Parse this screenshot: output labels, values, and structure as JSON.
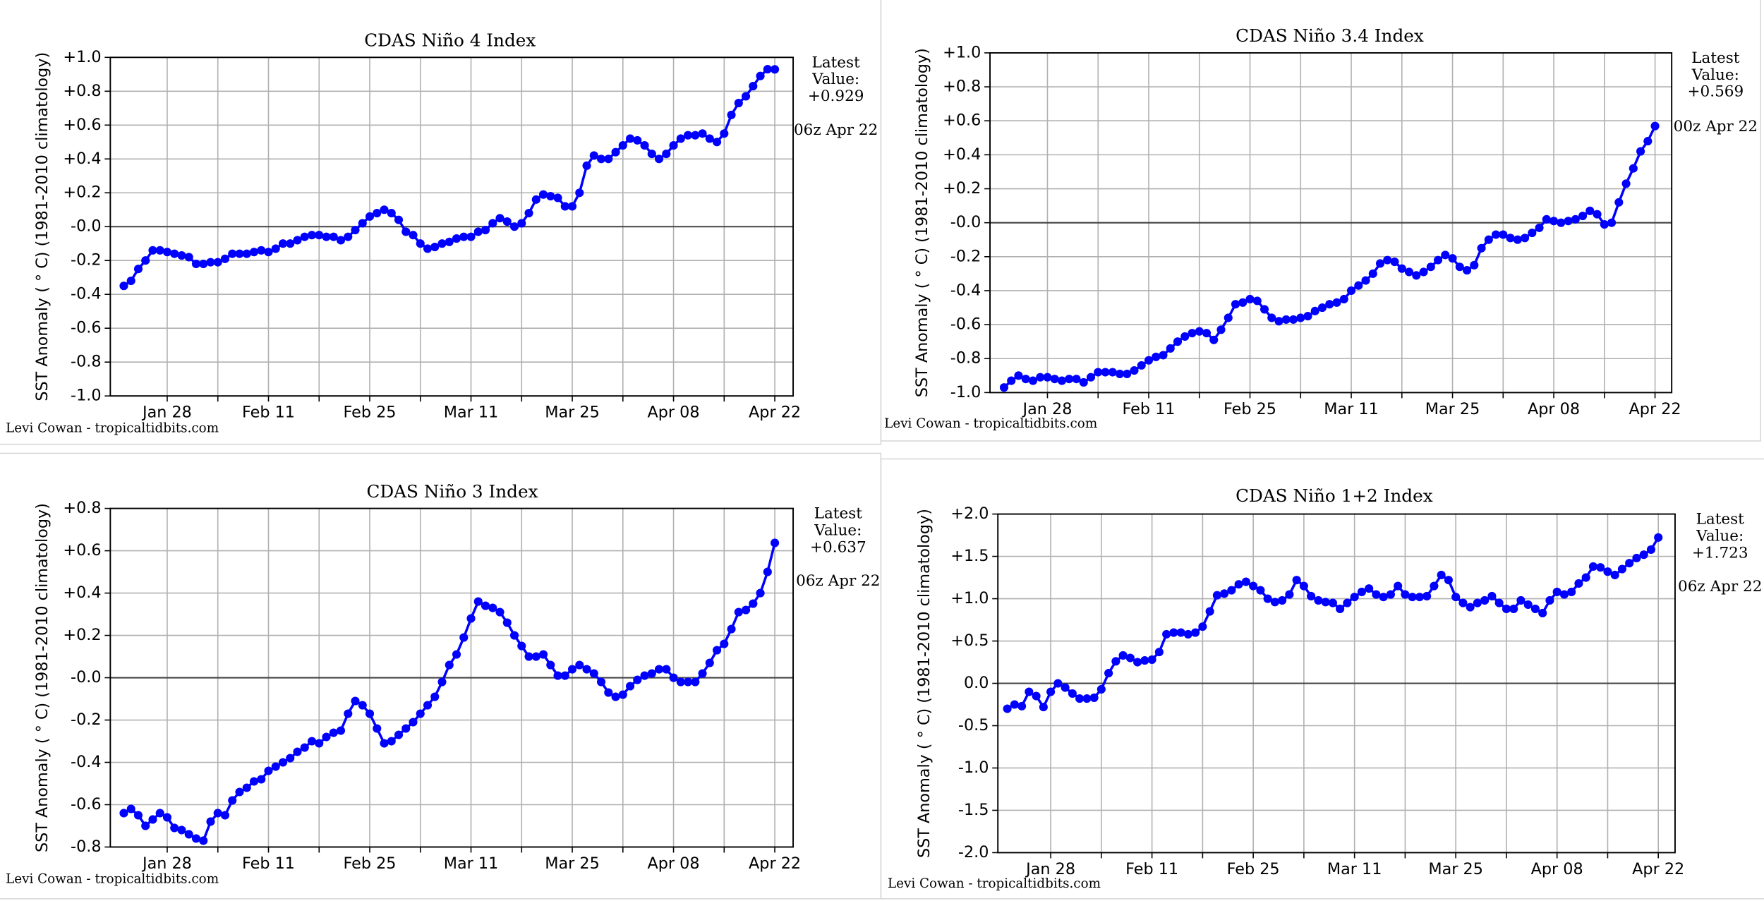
{
  "chart_data": [
    {
      "type": "line",
      "title": "CDAS Niño 4 Index",
      "ylabel": "SST Anomaly ( ° C) (1981-2010 climatology)",
      "color": "#0000ff",
      "grid": true,
      "annotations": {
        "latest": [
          "Latest",
          "Value:"
        ],
        "value": "+0.929",
        "time": "06z Apr 22"
      },
      "credit": "Levi Cowan - tropicaltidbits.com",
      "categories": [
        null,
        null,
        null,
        null,
        null,
        null,
        "Jan 28",
        null,
        null,
        null,
        null,
        null,
        null,
        null,
        null,
        null,
        null,
        null,
        null,
        null,
        "Feb 11",
        null,
        null,
        null,
        null,
        null,
        null,
        null,
        null,
        null,
        null,
        null,
        null,
        null,
        "Feb 25",
        null,
        null,
        null,
        null,
        null,
        null,
        null,
        null,
        null,
        null,
        null,
        null,
        null,
        "Mar 11",
        null,
        null,
        null,
        null,
        null,
        null,
        null,
        null,
        null,
        null,
        null,
        null,
        null,
        "Mar 25",
        null,
        null,
        null,
        null,
        null,
        null,
        null,
        null,
        null,
        null,
        null,
        null,
        null,
        "Apr 08",
        null,
        null,
        null,
        null,
        null,
        null,
        null,
        null,
        null,
        null,
        null,
        null,
        null,
        "Apr 22"
      ],
      "values": [
        -0.35,
        -0.32,
        -0.25,
        -0.2,
        -0.14,
        -0.14,
        -0.15,
        -0.16,
        -0.17,
        -0.18,
        -0.22,
        -0.22,
        -0.21,
        -0.21,
        -0.19,
        -0.16,
        -0.16,
        -0.16,
        -0.15,
        -0.14,
        -0.15,
        -0.13,
        -0.1,
        -0.1,
        -0.08,
        -0.06,
        -0.05,
        -0.05,
        -0.06,
        -0.06,
        -0.08,
        -0.06,
        -0.02,
        0.02,
        0.06,
        0.08,
        0.1,
        0.08,
        0.04,
        -0.03,
        -0.05,
        -0.1,
        -0.13,
        -0.12,
        -0.1,
        -0.09,
        -0.07,
        -0.06,
        -0.06,
        -0.03,
        -0.02,
        0.02,
        0.05,
        0.03,
        0.0,
        0.02,
        0.08,
        0.16,
        0.19,
        0.18,
        0.17,
        0.12,
        0.12,
        0.2,
        0.36,
        0.42,
        0.4,
        0.4,
        0.44,
        0.48,
        0.52,
        0.51,
        0.48,
        0.43,
        0.4,
        0.43,
        0.48,
        0.52,
        0.54,
        0.54,
        0.55,
        0.52,
        0.5,
        0.55,
        0.66,
        0.73,
        0.77,
        0.83,
        0.89,
        0.93,
        0.929
      ],
      "ylim": [
        -1.0,
        1.0
      ],
      "yticks": [
        {
          "value": -1.0,
          "label": "-1.0"
        },
        {
          "value": -0.8,
          "label": "-0.8"
        },
        {
          "value": -0.6,
          "label": "-0.6"
        },
        {
          "value": -0.4,
          "label": "-0.4"
        },
        {
          "value": -0.2,
          "label": "-0.2"
        },
        {
          "value": 0,
          "label": "-0.0"
        },
        {
          "value": 0.2,
          "label": "+0.2"
        },
        {
          "value": 0.4,
          "label": "+0.4"
        },
        {
          "value": 0.6,
          "label": "+0.6"
        },
        {
          "value": 0.8,
          "label": "+0.8"
        },
        {
          "value": 1.0,
          "label": "+1.0"
        }
      ]
    },
    {
      "type": "line",
      "title": "CDAS Niño 3.4 Index",
      "ylabel": "SST Anomaly ( ° C) (1981-2010 climatology)",
      "color": "#0000ff",
      "grid": true,
      "annotations": {
        "latest": [
          "Latest",
          "Value:"
        ],
        "value": "+0.569",
        "time": "00z Apr 22"
      },
      "credit": "Levi Cowan - tropicaltidbits.com",
      "categories": [
        null,
        null,
        null,
        null,
        null,
        null,
        "Jan 28",
        null,
        null,
        null,
        null,
        null,
        null,
        null,
        null,
        null,
        null,
        null,
        null,
        null,
        "Feb 11",
        null,
        null,
        null,
        null,
        null,
        null,
        null,
        null,
        null,
        null,
        null,
        null,
        null,
        "Feb 25",
        null,
        null,
        null,
        null,
        null,
        null,
        null,
        null,
        null,
        null,
        null,
        null,
        null,
        "Mar 11",
        null,
        null,
        null,
        null,
        null,
        null,
        null,
        null,
        null,
        null,
        null,
        null,
        null,
        "Mar 25",
        null,
        null,
        null,
        null,
        null,
        null,
        null,
        null,
        null,
        null,
        null,
        null,
        null,
        "Apr 08",
        null,
        null,
        null,
        null,
        null,
        null,
        null,
        null,
        null,
        null,
        null,
        null,
        null,
        "Apr 22"
      ],
      "values": [
        -0.97,
        -0.93,
        -0.9,
        -0.92,
        -0.93,
        -0.91,
        -0.91,
        -0.92,
        -0.93,
        -0.92,
        -0.92,
        -0.94,
        -0.91,
        -0.88,
        -0.88,
        -0.88,
        -0.89,
        -0.89,
        -0.87,
        -0.84,
        -0.81,
        -0.79,
        -0.78,
        -0.74,
        -0.7,
        -0.67,
        -0.65,
        -0.64,
        -0.65,
        -0.69,
        -0.63,
        -0.56,
        -0.48,
        -0.47,
        -0.45,
        -0.46,
        -0.51,
        -0.56,
        -0.58,
        -0.57,
        -0.57,
        -0.56,
        -0.55,
        -0.52,
        -0.5,
        -0.48,
        -0.47,
        -0.45,
        -0.4,
        -0.37,
        -0.34,
        -0.3,
        -0.24,
        -0.22,
        -0.23,
        -0.27,
        -0.29,
        -0.31,
        -0.29,
        -0.26,
        -0.22,
        -0.19,
        -0.21,
        -0.26,
        -0.28,
        -0.25,
        -0.15,
        -0.1,
        -0.07,
        -0.07,
        -0.09,
        -0.1,
        -0.09,
        -0.06,
        -0.03,
        0.02,
        0.01,
        0.0,
        0.01,
        0.02,
        0.04,
        0.07,
        0.05,
        -0.01,
        0.0,
        0.12,
        0.23,
        0.32,
        0.42,
        0.48,
        0.569
      ],
      "ylim": [
        -1.0,
        1.0
      ],
      "yticks": [
        {
          "value": -1.0,
          "label": "-1.0"
        },
        {
          "value": -0.8,
          "label": "-0.8"
        },
        {
          "value": -0.6,
          "label": "-0.6"
        },
        {
          "value": -0.4,
          "label": "-0.4"
        },
        {
          "value": -0.2,
          "label": "-0.2"
        },
        {
          "value": 0,
          "label": "-0.0"
        },
        {
          "value": 0.2,
          "label": "+0.2"
        },
        {
          "value": 0.4,
          "label": "+0.4"
        },
        {
          "value": 0.6,
          "label": "+0.6"
        },
        {
          "value": 0.8,
          "label": "+0.8"
        },
        {
          "value": 1.0,
          "label": "+1.0"
        }
      ]
    },
    {
      "type": "line",
      "title": "CDAS Niño 3 Index",
      "ylabel": "SST Anomaly ( ° C) (1981-2010 climatology)",
      "color": "#0000ff",
      "grid": true,
      "annotations": {
        "latest": [
          "Latest",
          "Value:"
        ],
        "value": "+0.637",
        "time": "06z Apr 22"
      },
      "credit": "Levi Cowan - tropicaltidbits.com",
      "categories": [
        null,
        null,
        null,
        null,
        null,
        null,
        "Jan 28",
        null,
        null,
        null,
        null,
        null,
        null,
        null,
        null,
        null,
        null,
        null,
        null,
        null,
        "Feb 11",
        null,
        null,
        null,
        null,
        null,
        null,
        null,
        null,
        null,
        null,
        null,
        null,
        null,
        "Feb 25",
        null,
        null,
        null,
        null,
        null,
        null,
        null,
        null,
        null,
        null,
        null,
        null,
        null,
        "Mar 11",
        null,
        null,
        null,
        null,
        null,
        null,
        null,
        null,
        null,
        null,
        null,
        null,
        null,
        "Mar 25",
        null,
        null,
        null,
        null,
        null,
        null,
        null,
        null,
        null,
        null,
        null,
        null,
        null,
        "Apr 08",
        null,
        null,
        null,
        null,
        null,
        null,
        null,
        null,
        null,
        null,
        null,
        null,
        null,
        "Apr 22"
      ],
      "values": [
        -0.64,
        -0.62,
        -0.65,
        -0.7,
        -0.67,
        -0.64,
        -0.66,
        -0.71,
        -0.72,
        -0.74,
        -0.76,
        -0.77,
        -0.68,
        -0.64,
        -0.65,
        -0.58,
        -0.54,
        -0.52,
        -0.49,
        -0.48,
        -0.44,
        -0.42,
        -0.4,
        -0.38,
        -0.35,
        -0.33,
        -0.3,
        -0.31,
        -0.28,
        -0.26,
        -0.25,
        -0.17,
        -0.11,
        -0.13,
        -0.17,
        -0.24,
        -0.31,
        -0.3,
        -0.27,
        -0.24,
        -0.21,
        -0.17,
        -0.13,
        -0.09,
        -0.02,
        0.06,
        0.11,
        0.19,
        0.28,
        0.36,
        0.34,
        0.33,
        0.31,
        0.26,
        0.2,
        0.15,
        0.1,
        0.1,
        0.11,
        0.06,
        0.01,
        0.01,
        0.04,
        0.06,
        0.04,
        0.02,
        -0.02,
        -0.07,
        -0.09,
        -0.08,
        -0.04,
        -0.01,
        0.01,
        0.02,
        0.04,
        0.04,
        0.0,
        -0.02,
        -0.02,
        -0.02,
        0.02,
        0.07,
        0.13,
        0.16,
        0.23,
        0.31,
        0.32,
        0.35,
        0.4,
        0.5,
        0.637
      ],
      "ylim": [
        -0.8,
        0.8
      ],
      "yticks": [
        {
          "value": -0.8,
          "label": "-0.8"
        },
        {
          "value": -0.6,
          "label": "-0.6"
        },
        {
          "value": -0.4,
          "label": "-0.4"
        },
        {
          "value": -0.2,
          "label": "-0.2"
        },
        {
          "value": 0,
          "label": "-0.0"
        },
        {
          "value": 0.2,
          "label": "+0.2"
        },
        {
          "value": 0.4,
          "label": "+0.4"
        },
        {
          "value": 0.6,
          "label": "+0.6"
        },
        {
          "value": 0.8,
          "label": "+0.8"
        }
      ]
    },
    {
      "type": "line",
      "title": "CDAS Niño 1+2 Index",
      "ylabel": "SST Anomaly ( ° C) (1981-2010 climatology)",
      "color": "#0000ff",
      "grid": true,
      "annotations": {
        "latest": [
          "Latest",
          "Value:"
        ],
        "value": "+1.723",
        "time": "06z Apr 22"
      },
      "credit": "Levi Cowan - tropicaltidbits.com",
      "categories": [
        null,
        null,
        null,
        null,
        null,
        null,
        "Jan 28",
        null,
        null,
        null,
        null,
        null,
        null,
        null,
        null,
        null,
        null,
        null,
        null,
        null,
        "Feb 11",
        null,
        null,
        null,
        null,
        null,
        null,
        null,
        null,
        null,
        null,
        null,
        null,
        null,
        "Feb 25",
        null,
        null,
        null,
        null,
        null,
        null,
        null,
        null,
        null,
        null,
        null,
        null,
        null,
        "Mar 11",
        null,
        null,
        null,
        null,
        null,
        null,
        null,
        null,
        null,
        null,
        null,
        null,
        null,
        "Mar 25",
        null,
        null,
        null,
        null,
        null,
        null,
        null,
        null,
        null,
        null,
        null,
        null,
        null,
        "Apr 08",
        null,
        null,
        null,
        null,
        null,
        null,
        null,
        null,
        null,
        null,
        null,
        null,
        null,
        "Apr 22"
      ],
      "values": [
        -0.3,
        -0.25,
        -0.27,
        -0.1,
        -0.15,
        -0.28,
        -0.1,
        0.0,
        -0.05,
        -0.12,
        -0.18,
        -0.18,
        -0.17,
        -0.07,
        0.12,
        0.26,
        0.33,
        0.3,
        0.25,
        0.27,
        0.28,
        0.37,
        0.58,
        0.6,
        0.6,
        0.58,
        0.6,
        0.67,
        0.85,
        1.04,
        1.06,
        1.1,
        1.17,
        1.2,
        1.15,
        1.1,
        1.0,
        0.96,
        0.98,
        1.05,
        1.22,
        1.15,
        1.03,
        0.98,
        0.96,
        0.95,
        0.88,
        0.95,
        1.02,
        1.08,
        1.12,
        1.05,
        1.02,
        1.05,
        1.15,
        1.05,
        1.02,
        1.02,
        1.03,
        1.15,
        1.28,
        1.22,
        1.02,
        0.95,
        0.9,
        0.95,
        0.98,
        1.03,
        0.95,
        0.88,
        0.88,
        0.98,
        0.93,
        0.88,
        0.83,
        0.98,
        1.08,
        1.05,
        1.08,
        1.18,
        1.25,
        1.38,
        1.37,
        1.32,
        1.28,
        1.35,
        1.42,
        1.48,
        1.52,
        1.58,
        1.723
      ],
      "ylim": [
        -2.0,
        2.0
      ],
      "yticks": [
        {
          "value": -2.0,
          "label": "-2.0"
        },
        {
          "value": -1.5,
          "label": "-1.5"
        },
        {
          "value": -1.0,
          "label": "-1.0"
        },
        {
          "value": -0.5,
          "label": "-0.5"
        },
        {
          "value": 0,
          "label": "0.0"
        },
        {
          "value": 0.5,
          "label": "+0.5"
        },
        {
          "value": 1.0,
          "label": "+1.0"
        },
        {
          "value": 1.5,
          "label": "+1.5"
        },
        {
          "value": 2.0,
          "label": "+2.0"
        }
      ]
    }
  ]
}
